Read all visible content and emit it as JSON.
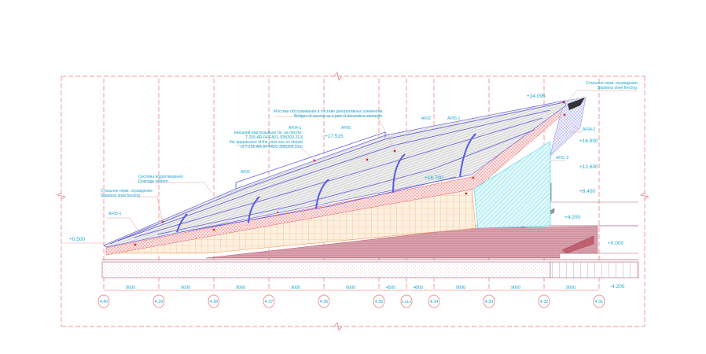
{
  "drawing": {
    "notes": {
      "service_bridges_ru": "Мостики обслуживания в составе декоративных элементов",
      "service_bridges_en": "Bridges of service as a part of decorative elements",
      "visor_tag": "AF04-1",
      "visor_ru_1": "внешний вид козырька см. на листах",
      "visor_ru_2": "T-205-AR-04-FA01-308(309,310)",
      "visor_en_1": "the appearance of the visor see on sheets",
      "visor_en_2": "of T-205-AR-04-FA01-308(309,310)",
      "drainage_ru": "Система водоотведения",
      "drainage_en": "Drainage system",
      "fence_left_ru": "Стальное нерж. ограждение",
      "fence_left_en": "Stainless steel fencing",
      "fence_right_ru": "Стальное нерж. ограждение",
      "fence_right_en": "Stainless steel fencing"
    },
    "tags": [
      "AF06",
      "AF02",
      "AF05-1",
      "AF02",
      "AF05-1",
      "AF04-2",
      "AF01-2"
    ],
    "elevations": {
      "top": "+24.095",
      "e17515": "+17.515",
      "e16800": "+16.800",
      "e16700": "+16.700",
      "e12600": "+12.600",
      "e8400": "+8.400",
      "e4200": "+4.200",
      "e0500": "+0.500",
      "e0000": "+0.000",
      "em4200": "-4.200"
    },
    "dimensions": [
      "9000",
      "9000",
      "9000",
      "9000",
      "9000",
      "4500",
      "4500",
      "9000",
      "9000",
      "9000"
    ],
    "axes": [
      "4.40",
      "4.39",
      "4.38",
      "4.37",
      "4.36",
      "4.35",
      "4.34/1",
      "4.34",
      "4.33",
      "4.32",
      "4.31"
    ],
    "colors": {
      "grid": "#f07070",
      "text": "#19a7d6",
      "structure": "#5a5ae0",
      "glazing": "#5fd8e8",
      "stand": "#c07080"
    }
  }
}
